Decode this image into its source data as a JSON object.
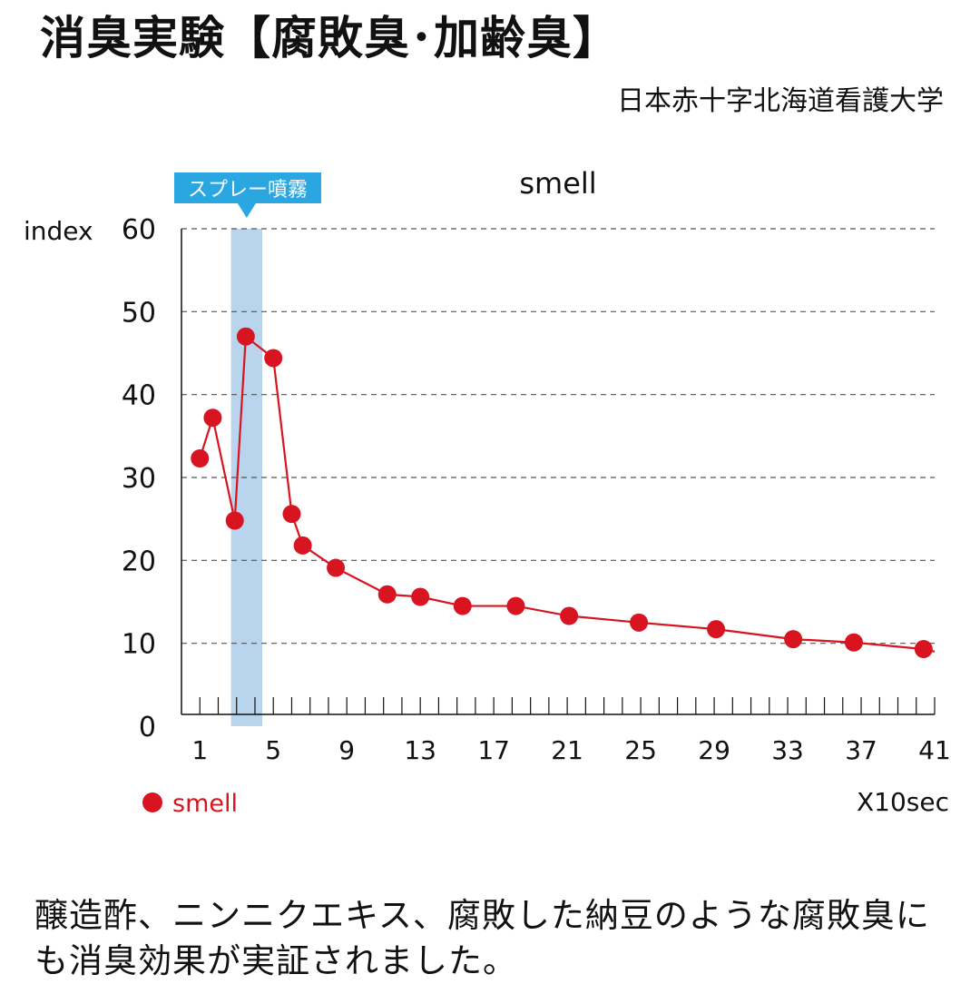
{
  "header": {
    "title": "消臭実験【腐敗臭･加齢臭】",
    "organization": "日本赤十字北海道看護大学"
  },
  "caption": "醸造酢、ニンニクエキス、腐敗した納豆のような腐敗臭にも消臭効果が実証されました。",
  "colors": {
    "series": "#d7141f",
    "spray_band": "#b9d5ee",
    "spray_label_bg": "#2aa7e0",
    "grid": "#555555"
  },
  "chart_data": {
    "type": "line",
    "title": "smell",
    "ylabel": "index",
    "xlabel": "X10sec",
    "ylim": [
      0,
      60
    ],
    "xlim": [
      0,
      41
    ],
    "yticks": [
      0,
      10,
      20,
      30,
      40,
      50,
      60
    ],
    "xticks": [
      1,
      5,
      9,
      13,
      17,
      21,
      25,
      29,
      33,
      37,
      41
    ],
    "grid": true,
    "legend": {
      "placement": "bottom-left",
      "entries": [
        "smell"
      ]
    },
    "annotation": {
      "label": "スプレー噴霧",
      "x_range": [
        2.7,
        4.4
      ]
    },
    "series": [
      {
        "name": "smell",
        "x": [
          1.0,
          1.7,
          2.9,
          3.5,
          5.0,
          6.0,
          6.6,
          8.4,
          11.2,
          13.0,
          15.3,
          18.2,
          21.1,
          24.9,
          29.1,
          33.3,
          36.6,
          40.4
        ],
        "y": [
          32.3,
          37.2,
          24.8,
          47.0,
          44.4,
          25.6,
          21.8,
          19.1,
          15.9,
          15.6,
          14.5,
          14.5,
          13.3,
          12.5,
          11.7,
          10.5,
          10.1,
          9.3
        ],
        "line_end": [
          41.0,
          9.0
        ]
      }
    ]
  }
}
